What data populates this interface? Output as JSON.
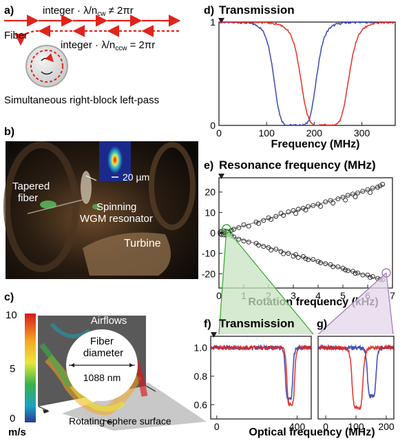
{
  "panels": {
    "a": {
      "label": "a)",
      "cw_condition": "integer · λ/n",
      "cw_subscript": "cw",
      "cw_relation": " ≠ 2πr",
      "ccw_condition": "integer · λ/n",
      "ccw_subscript": "ccw",
      "ccw_relation": " = 2πr",
      "fiber_label": "Fiber",
      "caption": "Simultaneous right-block left-pass",
      "colors": {
        "arrows": "#e2231a",
        "sphere_rim": "#b9b9b9",
        "sphere_fill": "#e6e6e6"
      }
    },
    "b": {
      "label": "b)",
      "tapered_fiber": [
        "Tapered",
        "fiber"
      ],
      "resonator": [
        "Spinning",
        "WGM resonator"
      ],
      "turbine": "Turbine",
      "scale_bar": "20 µm"
    },
    "c": {
      "label": "c)",
      "airflows": "Airflows",
      "fiber_diameter": [
        "Fiber",
        "diameter"
      ],
      "diameter_value": "1088 nm",
      "surface": "Rotating sphere surface",
      "colorbar_ticks": [
        "10",
        "5",
        "0"
      ],
      "colorbar_unit": "m/s"
    },
    "d": {
      "label": "d)",
      "title": "Transmission",
      "xlabel": "Frequency (MHz)"
    },
    "e": {
      "label": "e)",
      "title": "Resonance frequency (MHz)",
      "xlabel": "Rotation frequency (kHz)"
    },
    "f": {
      "label": "f)",
      "title": "Transmission"
    },
    "g": {
      "label": "g)"
    },
    "fg_xlabel": "Optical frequency (MHz)"
  },
  "chart_data": [
    {
      "id": "d",
      "type": "line",
      "title": "Transmission",
      "xlabel": "Frequency (MHz)",
      "ylabel": "",
      "xlim": [
        0,
        370
      ],
      "ylim": [
        0,
        1
      ],
      "xticks": [
        0,
        100,
        200,
        300
      ],
      "yticks": [
        0,
        1
      ],
      "series": [
        {
          "color": "#2b3fb0",
          "center": 160,
          "width": 92,
          "floor": 0.0
        },
        {
          "color": "#e2231a",
          "center": 222,
          "width": 104,
          "floor": 0.0
        }
      ]
    },
    {
      "id": "e",
      "type": "scatter",
      "title": "Resonance frequency (MHz)",
      "xlabel": "Rotation frequency (kHz)",
      "xlim": [
        0,
        7
      ],
      "ylim": [
        -27,
        27
      ],
      "xticks": [
        0,
        1,
        2,
        3,
        4,
        5,
        6,
        7
      ],
      "yticks": [
        -20,
        -10,
        0,
        10,
        20
      ],
      "fit_lines": [
        {
          "slope": 3.5,
          "x": [
            0,
            6.7
          ]
        },
        {
          "slope": -3.5,
          "x": [
            0,
            6.7
          ]
        }
      ],
      "series": [
        {
          "points": [
            [
              0.05,
              0.4
            ],
            [
              0.1,
              0.8
            ],
            [
              0.2,
              1.0
            ],
            [
              0.3,
              0.9
            ],
            [
              0.4,
              0.5
            ],
            [
              0.5,
              1.3
            ],
            [
              0.6,
              1.8
            ],
            [
              0.8,
              2.6
            ],
            [
              1.0,
              4.0
            ],
            [
              1.2,
              3.3
            ],
            [
              1.5,
              5.3
            ],
            [
              1.6,
              4.6
            ],
            [
              1.8,
              6.1
            ],
            [
              2.0,
              7.4
            ],
            [
              2.1,
              6.6
            ],
            [
              2.3,
              8.1
            ],
            [
              2.5,
              9.6
            ],
            [
              2.6,
              8.6
            ],
            [
              2.8,
              10.3
            ],
            [
              3.0,
              11.0
            ],
            [
              3.1,
              9.5
            ],
            [
              3.2,
              11.6
            ],
            [
              3.4,
              12.1
            ],
            [
              3.5,
              11.2
            ],
            [
              3.6,
              12.9
            ],
            [
              3.8,
              13.4
            ],
            [
              4.0,
              14.1
            ],
            [
              4.1,
              13.0
            ],
            [
              4.3,
              15.2
            ],
            [
              4.5,
              15.9
            ],
            [
              4.6,
              14.6
            ],
            [
              4.8,
              16.7
            ],
            [
              5.0,
              17.5
            ],
            [
              5.1,
              16.1
            ],
            [
              5.2,
              18.4
            ],
            [
              5.4,
              19.0
            ],
            [
              5.5,
              17.7
            ],
            [
              5.6,
              19.6
            ],
            [
              5.8,
              20.4
            ],
            [
              6.0,
              21.2
            ],
            [
              6.1,
              19.8
            ],
            [
              6.2,
              21.9
            ],
            [
              6.4,
              22.4
            ],
            [
              6.5,
              23.0
            ],
            [
              6.6,
              23.8
            ]
          ]
        },
        {
          "points": [
            [
              0.05,
              -0.4
            ],
            [
              0.1,
              -0.8
            ],
            [
              0.2,
              -1.0
            ],
            [
              0.3,
              -1.1
            ],
            [
              0.4,
              -0.5
            ],
            [
              0.5,
              -1.3
            ],
            [
              0.6,
              -2.0
            ],
            [
              0.8,
              -3.1
            ],
            [
              1.0,
              -4.0
            ],
            [
              1.2,
              -4.5
            ],
            [
              1.5,
              -5.1
            ],
            [
              1.6,
              -6.0
            ],
            [
              1.8,
              -6.6
            ],
            [
              2.0,
              -7.2
            ],
            [
              2.1,
              -8.4
            ],
            [
              2.3,
              -8.0
            ],
            [
              2.5,
              -9.1
            ],
            [
              2.6,
              -10.2
            ],
            [
              2.8,
              -10.0
            ],
            [
              3.0,
              -11.4
            ],
            [
              3.1,
              -10.6
            ],
            [
              3.2,
              -12.0
            ],
            [
              3.4,
              -11.6
            ],
            [
              3.5,
              -12.6
            ],
            [
              3.6,
              -13.1
            ],
            [
              3.8,
              -13.0
            ],
            [
              4.0,
              -14.0
            ],
            [
              4.1,
              -14.6
            ],
            [
              4.3,
              -15.1
            ],
            [
              4.5,
              -15.5
            ],
            [
              4.6,
              -16.5
            ],
            [
              4.8,
              -16.6
            ],
            [
              5.0,
              -17.3
            ],
            [
              5.1,
              -18.1
            ],
            [
              5.2,
              -18.5
            ],
            [
              5.4,
              -18.8
            ],
            [
              5.5,
              -19.8
            ],
            [
              5.6,
              -19.6
            ],
            [
              5.8,
              -20.6
            ],
            [
              6.0,
              -20.6
            ],
            [
              6.1,
              -21.8
            ],
            [
              6.2,
              -21.4
            ],
            [
              6.4,
              -22.3
            ],
            [
              6.5,
              -22.8
            ],
            [
              6.6,
              -23.0
            ]
          ]
        }
      ]
    },
    {
      "id": "f",
      "type": "line",
      "title": "Transmission",
      "xlim": [
        -30,
        470
      ],
      "ylim": [
        0.5,
        1.08
      ],
      "xticks": [
        0,
        400
      ],
      "yticks": [
        0.6,
        0.8,
        1.0
      ],
      "series": [
        {
          "color": "#2b3fb0",
          "center": 360,
          "width": 38,
          "floor": 0.64
        },
        {
          "color": "#e2231a",
          "center": 368,
          "width": 40,
          "floor": 0.6
        }
      ]
    },
    {
      "id": "g",
      "type": "line",
      "xlim": [
        -25,
        225
      ],
      "ylim": [
        0.5,
        1.08
      ],
      "xticks": [
        0,
        100,
        200
      ],
      "yticks": [],
      "series": [
        {
          "color": "#2b3fb0",
          "center": 152,
          "width": 30,
          "floor": 0.66
        },
        {
          "color": "#e2231a",
          "center": 105,
          "width": 38,
          "floor": 0.58
        }
      ]
    }
  ],
  "colors": {
    "zoom_green": "#3aaa35",
    "zoom_green_fill": "#c7e3c0",
    "zoom_purple": "#a77cb8",
    "zoom_purple_fill": "#e3d6ea",
    "fit_line": "#9a9a9a"
  }
}
